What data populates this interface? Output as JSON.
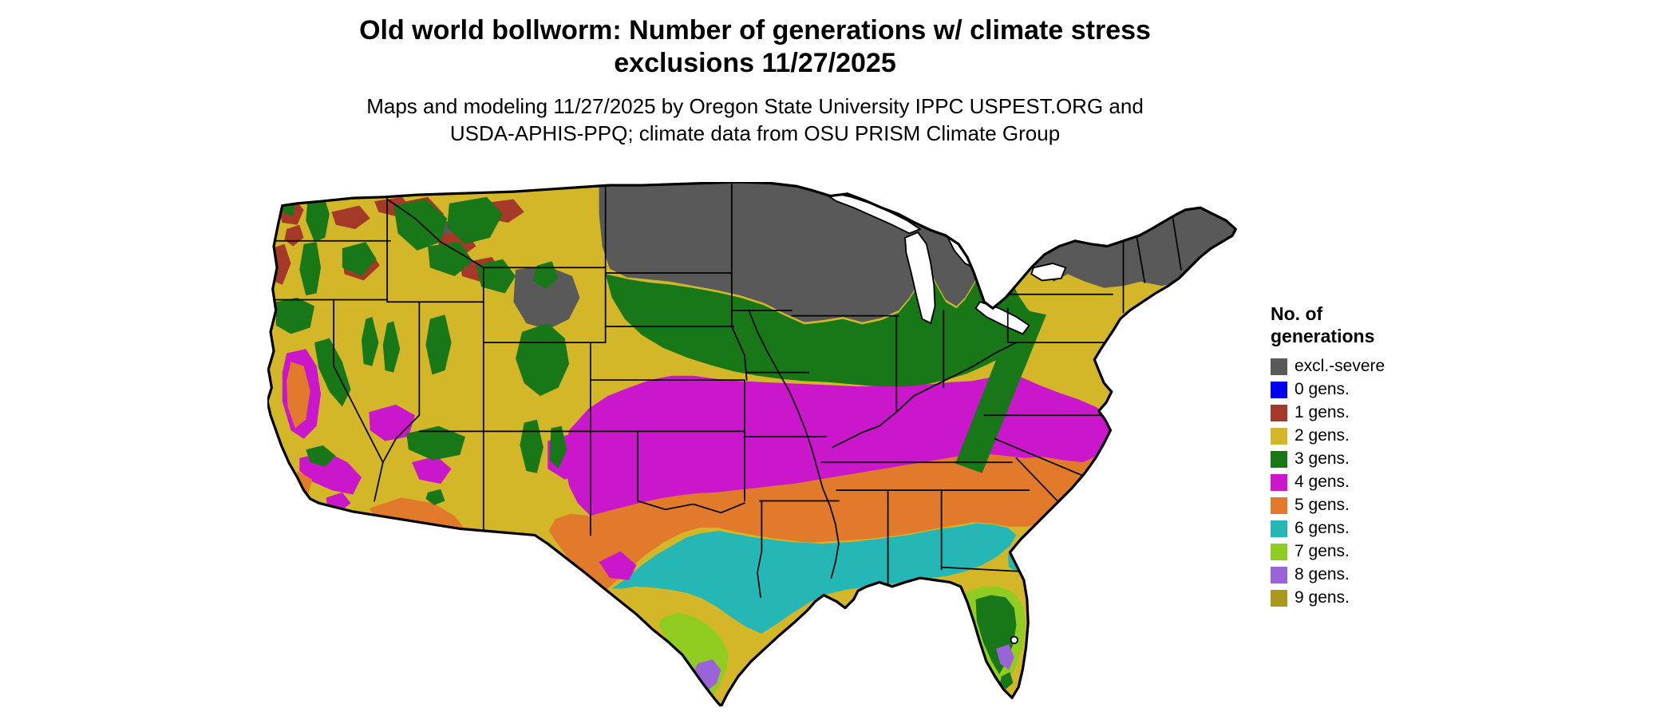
{
  "header": {
    "title_line1": "Old world bollworm: Number of generations w/ climate stress",
    "title_line2": "exclusions 11/27/2025",
    "subtitle_line1": "Maps and modeling 11/27/2025 by Oregon State University IPPC USPEST.ORG and",
    "subtitle_line2": "USDA-APHIS-PPQ; climate data from OSU PRISM Climate Group"
  },
  "legend": {
    "title_line1": "No. of",
    "title_line2": "generations",
    "items": [
      {
        "key": "excl",
        "label": "excl.-severe",
        "color": "#595959"
      },
      {
        "key": "g0",
        "label": "0 gens.",
        "color": "#0000ee"
      },
      {
        "key": "g1",
        "label": "1 gens.",
        "color": "#a4392a"
      },
      {
        "key": "g2",
        "label": "2 gens.",
        "color": "#d4b728"
      },
      {
        "key": "g3",
        "label": "3 gens.",
        "color": "#187818"
      },
      {
        "key": "g4",
        "label": "4 gens.",
        "color": "#cb17cb"
      },
      {
        "key": "g5",
        "label": "5 gens.",
        "color": "#e17b2b"
      },
      {
        "key": "g6",
        "label": "6 gens.",
        "color": "#25b6b6"
      },
      {
        "key": "g7",
        "label": "7 gens.",
        "color": "#90cc22"
      },
      {
        "key": "g8",
        "label": "8 gens.",
        "color": "#9b63d8"
      },
      {
        "key": "g9",
        "label": "9 gens.",
        "color": "#a9991c"
      }
    ]
  },
  "map": {
    "name": "Continental United States generations choropleth",
    "background": "#ffffff",
    "border_color": "#000000"
  }
}
